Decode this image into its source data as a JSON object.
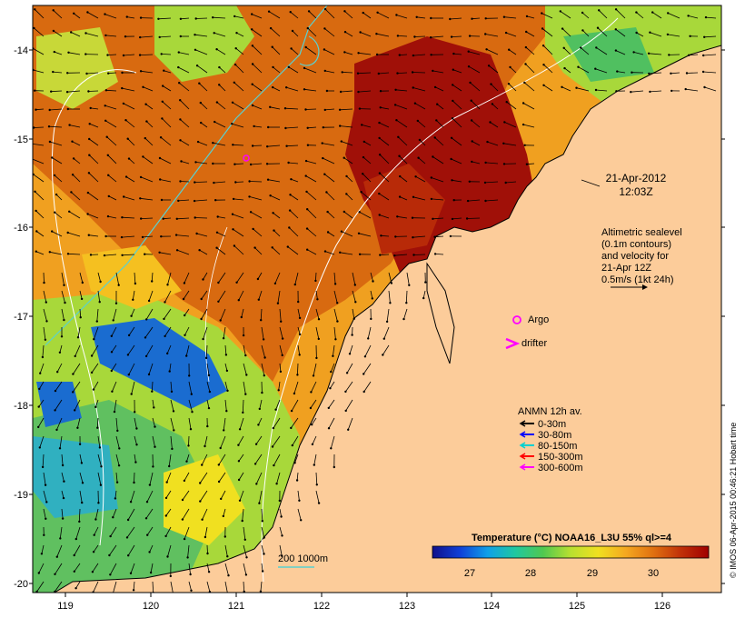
{
  "map": {
    "x_ticks": [
      "119",
      "120",
      "121",
      "122",
      "123",
      "124",
      "125",
      "126"
    ],
    "y_ticks": [
      "-14",
      "-15",
      "-16",
      "-17",
      "-18",
      "-19",
      "-20"
    ],
    "timestamp_date": "21-Apr-2012",
    "timestamp_time": "12:03Z",
    "altimetry_note": [
      "Altimetric sealevel",
      "(0.1m contours)",
      "and velocity for",
      "21-Apr 12Z",
      "0.5m/s (1kt 24h)"
    ],
    "argo_label": "Argo",
    "drifter_label": "drifter",
    "anmn_title": "ANMN 12h av.",
    "anmn_items": [
      {
        "label": "0-30m",
        "color": "#000000"
      },
      {
        "label": "30-80m",
        "color": "#0000ff"
      },
      {
        "label": "80-150m",
        "color": "#00d0d0"
      },
      {
        "label": "150-300m",
        "color": "#ff0000"
      },
      {
        "label": "300-600m",
        "color": "#ff00ff"
      }
    ],
    "isobath_label": "200  1000m",
    "colorbar_title": "Temperature (°C) NOAA16_L3U 55% ql>=4",
    "colorbar_ticks": [
      "27",
      "28",
      "29",
      "30"
    ],
    "credit": "© IMOS 06-Apr-2015 00:46:21 Hobart time",
    "colors": {
      "land": "#fccc9a",
      "hot": "#a00000",
      "warm": "#d86a10",
      "mid": "#f2a020",
      "cool": "#a8d83a",
      "cold": "#1a6cd0",
      "contour": "#5ad0d0"
    }
  }
}
